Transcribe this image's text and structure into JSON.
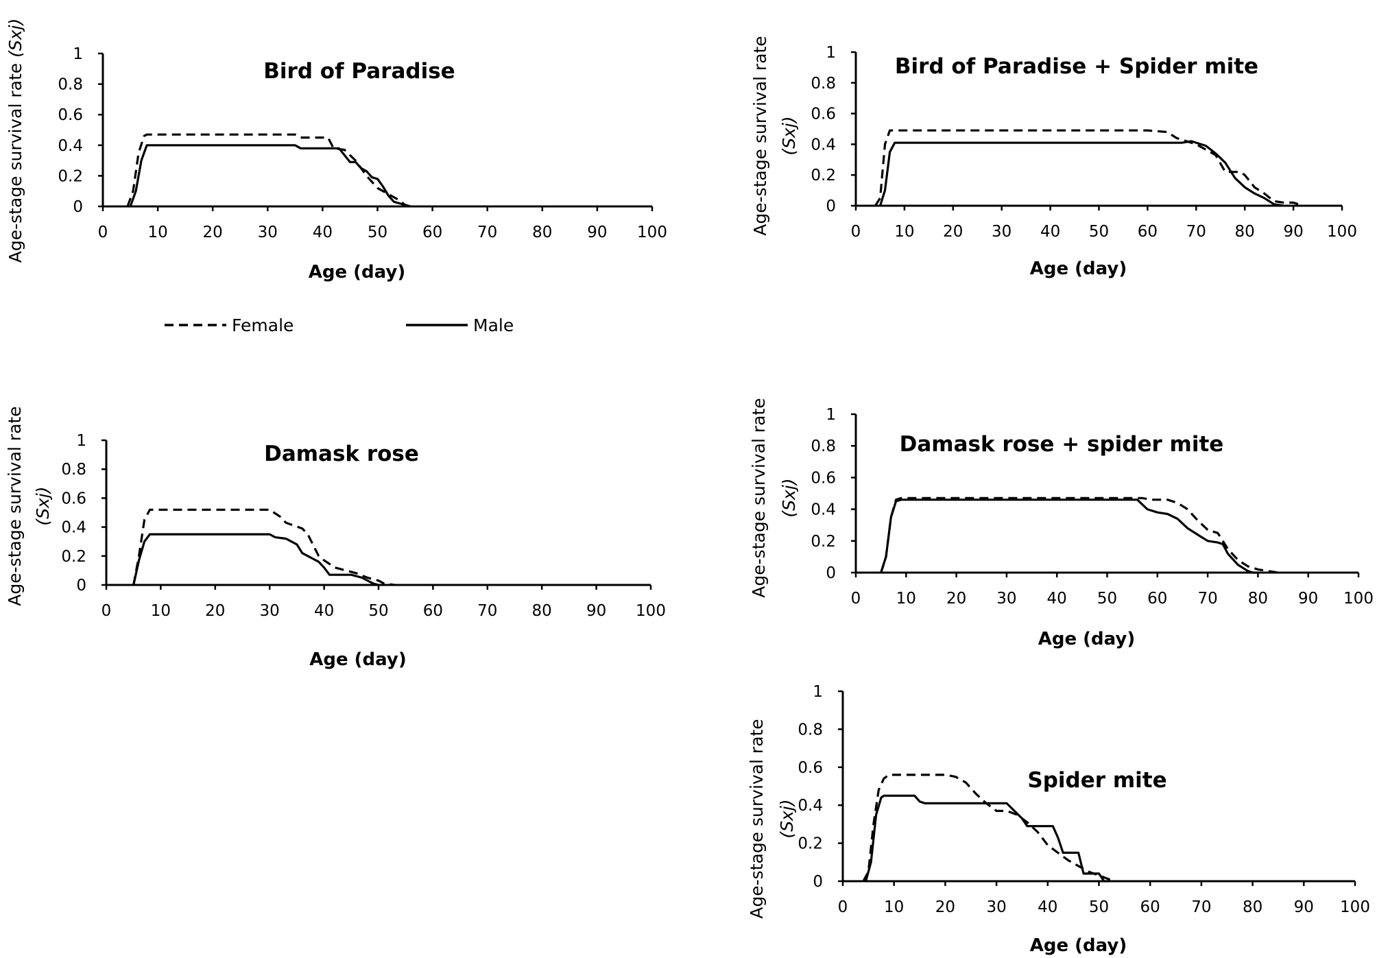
{
  "figure": {
    "legend": [
      {
        "label": "Female",
        "dash": "dashed"
      },
      {
        "label": "Male",
        "dash": "solid"
      }
    ]
  },
  "chart_data": [
    {
      "type": "line",
      "title": "Bird of Paradise",
      "xlabel": "Age (day)",
      "ylabel_main": "Age-stage survival rate",
      "ylabel_italic": "(Sxj)",
      "ylabel_layout": "single",
      "xlim": [
        0,
        100
      ],
      "ylim": [
        0,
        1
      ],
      "xticks": [
        "0",
        "10",
        "20",
        "30",
        "40",
        "50",
        "60",
        "70",
        "80",
        "90",
        "100"
      ],
      "yticks": [
        "0",
        "0.2",
        "0.4",
        "0.6",
        "0.8",
        "1"
      ],
      "series": [
        {
          "name": "Female",
          "x": [
            4.5,
            5.5,
            6.5,
            7.5,
            8,
            35,
            36,
            41,
            42,
            44,
            46,
            48,
            50,
            52,
            54,
            55,
            56
          ],
          "y": [
            0,
            0.1,
            0.35,
            0.46,
            0.47,
            0.47,
            0.45,
            0.45,
            0.38,
            0.37,
            0.3,
            0.2,
            0.12,
            0.08,
            0.04,
            0.01,
            0
          ]
        },
        {
          "name": "Male",
          "x": [
            5,
            6,
            7,
            8,
            9,
            35,
            36,
            43,
            45,
            46,
            47,
            48,
            49,
            50,
            51,
            52,
            53,
            54,
            55,
            56
          ],
          "y": [
            0,
            0.1,
            0.3,
            0.4,
            0.4,
            0.4,
            0.38,
            0.38,
            0.29,
            0.29,
            0.25,
            0.23,
            0.19,
            0.18,
            0.13,
            0.07,
            0.03,
            0.02,
            0.01,
            0
          ]
        }
      ]
    },
    {
      "type": "line",
      "title": "Bird of Paradise + Spider mite",
      "xlabel": "Age (day)",
      "ylabel_main": "Age-stage survival rate",
      "ylabel_italic": "(Sxj)",
      "ylabel_layout": "double",
      "xlim": [
        0,
        100
      ],
      "ylim": [
        0,
        1
      ],
      "xticks": [
        "0",
        "10",
        "20",
        "30",
        "40",
        "50",
        "60",
        "70",
        "80",
        "90",
        "100"
      ],
      "yticks": [
        "0",
        "0.2",
        "0.4",
        "0.6",
        "0.8",
        "1"
      ],
      "series": [
        {
          "name": "Female",
          "x": [
            4,
            5,
            6,
            7,
            60,
            64,
            66,
            70,
            74,
            76,
            79,
            80,
            82,
            84,
            86,
            88,
            90,
            92
          ],
          "y": [
            0,
            0.05,
            0.4,
            0.49,
            0.49,
            0.48,
            0.44,
            0.4,
            0.33,
            0.22,
            0.22,
            0.2,
            0.12,
            0.08,
            0.03,
            0.02,
            0.02,
            0
          ]
        },
        {
          "name": "Male",
          "x": [
            5,
            6,
            7,
            8,
            67,
            69,
            72,
            74,
            76,
            78,
            80,
            82,
            84,
            86,
            88
          ],
          "y": [
            0,
            0.1,
            0.35,
            0.41,
            0.41,
            0.42,
            0.39,
            0.34,
            0.28,
            0.18,
            0.12,
            0.08,
            0.05,
            0.01,
            0
          ]
        }
      ]
    },
    {
      "type": "line",
      "title": "Damask rose",
      "xlabel": "Age (day)",
      "ylabel_main": "Age-stage survival rate",
      "ylabel_italic": "(Sxj)",
      "ylabel_layout": "double",
      "xlim": [
        0,
        100
      ],
      "ylim": [
        0,
        1
      ],
      "xticks": [
        "0",
        "10",
        "20",
        "30",
        "40",
        "50",
        "60",
        "70",
        "80",
        "90",
        "100"
      ],
      "yticks": [
        "0",
        "0.2",
        "0.4",
        "0.6",
        "0.8",
        "1"
      ],
      "series": [
        {
          "name": "Female",
          "x": [
            5,
            6,
            7,
            8,
            9,
            30,
            32,
            33,
            36,
            37,
            39,
            40,
            42,
            44,
            46,
            48,
            50,
            51,
            53
          ],
          "y": [
            0,
            0.2,
            0.45,
            0.52,
            0.52,
            0.52,
            0.47,
            0.43,
            0.39,
            0.35,
            0.2,
            0.17,
            0.12,
            0.1,
            0.08,
            0.05,
            0.03,
            0.01,
            0
          ]
        },
        {
          "name": "Male",
          "x": [
            5,
            6,
            7,
            8,
            9,
            30,
            31,
            33,
            34,
            35,
            36,
            38,
            39,
            40,
            41,
            43,
            45,
            47,
            49,
            50
          ],
          "y": [
            0,
            0.17,
            0.3,
            0.35,
            0.35,
            0.35,
            0.33,
            0.32,
            0.3,
            0.28,
            0.22,
            0.18,
            0.16,
            0.12,
            0.07,
            0.07,
            0.07,
            0.05,
            0.01,
            0
          ]
        }
      ]
    },
    {
      "type": "line",
      "title": "Damask rose + spider mite",
      "xlabel": "Age (day)",
      "ylabel_main": "Age-stage survival rate",
      "ylabel_italic": "(Sxj)",
      "ylabel_layout": "double",
      "xlim": [
        0,
        100
      ],
      "ylim": [
        0,
        1
      ],
      "xticks": [
        "0",
        "10",
        "20",
        "30",
        "40",
        "50",
        "60",
        "70",
        "80",
        "90",
        "100"
      ],
      "yticks": [
        "0",
        "0.2",
        "0.4",
        "0.6",
        "0.8",
        "1"
      ],
      "series": [
        {
          "name": "Female",
          "x": [
            5,
            6,
            7,
            8,
            9,
            57,
            59,
            62,
            64,
            66,
            68,
            70,
            72,
            74,
            76,
            78,
            80,
            82,
            84
          ],
          "y": [
            0,
            0.1,
            0.35,
            0.46,
            0.47,
            0.47,
            0.46,
            0.46,
            0.44,
            0.4,
            0.33,
            0.27,
            0.25,
            0.15,
            0.08,
            0.04,
            0.02,
            0.01,
            0
          ]
        },
        {
          "name": "Male",
          "x": [
            5,
            6,
            7,
            8,
            9,
            56,
            58,
            60,
            62,
            64,
            66,
            68,
            70,
            72,
            73,
            74,
            76,
            78,
            79,
            80
          ],
          "y": [
            0,
            0.1,
            0.35,
            0.45,
            0.46,
            0.46,
            0.4,
            0.38,
            0.37,
            0.34,
            0.28,
            0.24,
            0.2,
            0.19,
            0.18,
            0.12,
            0.05,
            0.01,
            0,
            0
          ]
        }
      ]
    },
    {
      "type": "line",
      "title": "Spider mite",
      "xlabel": "Age (day)",
      "ylabel_main": "Age-stage survival rate",
      "ylabel_italic": "(Sxj)",
      "ylabel_layout": "double",
      "xlim": [
        0,
        100
      ],
      "ylim": [
        0,
        1
      ],
      "xticks": [
        "0",
        "10",
        "20",
        "30",
        "40",
        "50",
        "60",
        "70",
        "80",
        "90",
        "100"
      ],
      "yticks": [
        "0",
        "0.2",
        "0.4",
        "0.6",
        "0.8",
        "1"
      ],
      "series": [
        {
          "name": "Female",
          "x": [
            4,
            5,
            6,
            7,
            8,
            9,
            20,
            22,
            24,
            26,
            28,
            30,
            32,
            34,
            36,
            38,
            40,
            42,
            44,
            46,
            48,
            50,
            52,
            53
          ],
          "y": [
            0,
            0.05,
            0.3,
            0.48,
            0.54,
            0.56,
            0.56,
            0.55,
            0.52,
            0.46,
            0.41,
            0.37,
            0.37,
            0.35,
            0.31,
            0.26,
            0.19,
            0.15,
            0.11,
            0.08,
            0.05,
            0.03,
            0.01,
            0
          ]
        },
        {
          "name": "Male",
          "x": [
            4.5,
            5.5,
            6.5,
            7.5,
            8,
            10,
            14,
            15,
            16,
            24,
            32,
            35,
            36,
            37,
            38,
            41,
            42,
            43,
            44,
            46,
            47,
            48,
            49,
            50,
            51,
            52
          ],
          "y": [
            0,
            0.1,
            0.35,
            0.44,
            0.45,
            0.45,
            0.45,
            0.42,
            0.41,
            0.41,
            0.41,
            0.33,
            0.29,
            0.29,
            0.29,
            0.29,
            0.23,
            0.15,
            0.15,
            0.15,
            0.04,
            0.04,
            0.04,
            0.04,
            0,
            0
          ]
        }
      ]
    }
  ]
}
